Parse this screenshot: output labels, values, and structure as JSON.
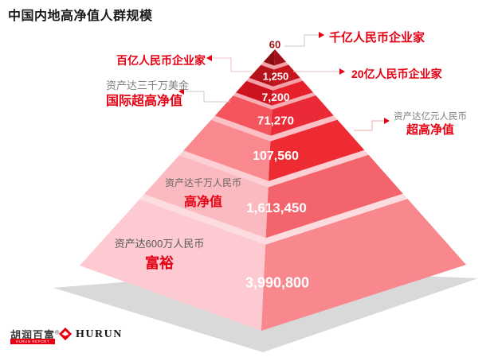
{
  "title": "中国内地高净值人群规模",
  "accent_red": "#E60012",
  "chart_data": {
    "type": "pyramid",
    "title": "中国内地高净值人群规模",
    "layers": [
      {
        "tier": "千亿人民币企业家",
        "qualifier": "",
        "value": 60,
        "value_label": "60",
        "left_color": "#8A0D12",
        "right_color": "#A31017",
        "band": [
          0.0,
          0.058
        ]
      },
      {
        "tier": "百亿人民币企业家",
        "qualifier": "",
        "value": 1250,
        "value_label": "1,250",
        "left_color": "#B5121A",
        "right_color": "#C7151E",
        "band": [
          0.072,
          0.132
        ]
      },
      {
        "tier": "20亿人民币企业家",
        "qualifier": "",
        "value": 7200,
        "value_label": "7,200",
        "left_color": "#CD1320",
        "right_color": "#E7202C",
        "band": [
          0.146,
          0.2
        ]
      },
      {
        "tier": "国际超高净值",
        "qualifier": "资产达三千万美金",
        "value": 71270,
        "value_label": "71,270",
        "left_color": "#F4555D",
        "right_color": "#EB2A37",
        "band": [
          0.214,
          0.307
        ]
      },
      {
        "tier": "超高净值",
        "qualifier": "资产达亿元人民币",
        "value": 107560,
        "value_label": "107,560",
        "left_color": "#F9898E",
        "right_color": "#EE2B33",
        "band": [
          0.327,
          0.468
        ]
      },
      {
        "tier": "高净值",
        "qualifier": "资产达千万人民币",
        "value": 1613450,
        "value_label": "1,613,450",
        "left_color": "#FBBAC0",
        "right_color": "#F4646C",
        "band": [
          0.49,
          0.67
        ]
      },
      {
        "tier": "富裕",
        "qualifier": "资产达600万人民币",
        "value": 3990800,
        "value_label": "3,990,800",
        "left_color": "#FCCAD0",
        "right_color": "#F8878E",
        "band": [
          0.694,
          1.0
        ]
      }
    ],
    "gap_colors": [
      "#F3A0A8",
      "#F3A0A8",
      "#F6AEB5",
      "#FAC0C6",
      "#FBCFD3",
      "#FCDCDF"
    ],
    "shadow_color": "#D9D9D9",
    "legend_position": "callouts-both-sides",
    "grid": false
  },
  "left_callouts": [
    {
      "text": "百亿人民币企业家"
    },
    {
      "sub": "资产达三千万美金",
      "text": "国际超高净值"
    }
  ],
  "right_callouts": [
    {
      "text": "千亿人民币企业家"
    },
    {
      "text": "20亿人民币企业家"
    },
    {
      "sub": "资产达亿元人民币",
      "text": "超高净值"
    }
  ],
  "face_labels": [
    {
      "sub": "资产达千万人民币",
      "text": "高净值"
    },
    {
      "sub": "资产达600万人民币",
      "text": "富裕"
    }
  ],
  "footer": {
    "brand_cn": "胡润百富",
    "reg_mark": "®",
    "bar_text": "HURUN REPORT",
    "brand_en": "HURUN"
  }
}
